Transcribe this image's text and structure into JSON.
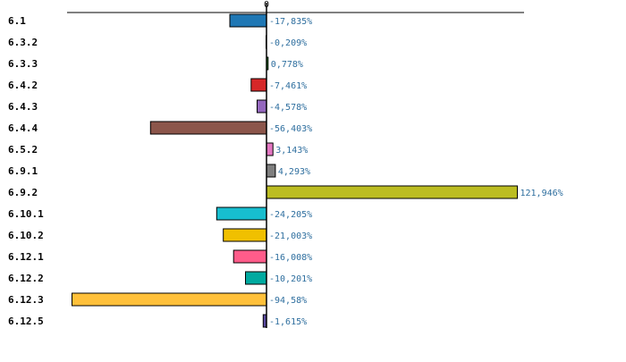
{
  "chart_data": {
    "type": "bar",
    "orientation": "horizontal",
    "title": "",
    "xlabel": "",
    "ylabel": "",
    "zero_tick_label": "0",
    "xlim": [
      -100,
      128
    ],
    "categories": [
      "6.1",
      "6.3.2",
      "6.3.3",
      "6.4.2",
      "6.4.3",
      "6.4.4",
      "6.5.2",
      "6.9.1",
      "6.9.2",
      "6.10.1",
      "6.10.2",
      "6.12.1",
      "6.12.2",
      "6.12.3",
      "6.12.5"
    ],
    "values": [
      -17.835,
      -0.209,
      0.778,
      -7.461,
      -4.578,
      -56.403,
      3.143,
      4.293,
      121.946,
      -24.205,
      -21.003,
      -16.008,
      -10.201,
      -94.58,
      -1.615
    ],
    "value_labels": [
      "-17,835%",
      "-0,209%",
      "0,778%",
      "-7,461%",
      "-4,578%",
      "-56,403%",
      "3,143%",
      "4,293%",
      "121,946%",
      "-24,205%",
      "-21,003%",
      "-16,008%",
      "-10,201%",
      "-94,58%",
      "-1,615%"
    ],
    "colors": [
      "#1f77b4",
      "#ff7f0e",
      "#2ca02c",
      "#d62728",
      "#9467bd",
      "#8c564b",
      "#e377c2",
      "#7f7f7f",
      "#bcbd22",
      "#17becf",
      "#f0c000",
      "#ff5c8a",
      "#00aaa0",
      "#ffc03a",
      "#5a4aa0"
    ],
    "label_color": "#2f6f9f",
    "grid": false,
    "legend": "none"
  }
}
